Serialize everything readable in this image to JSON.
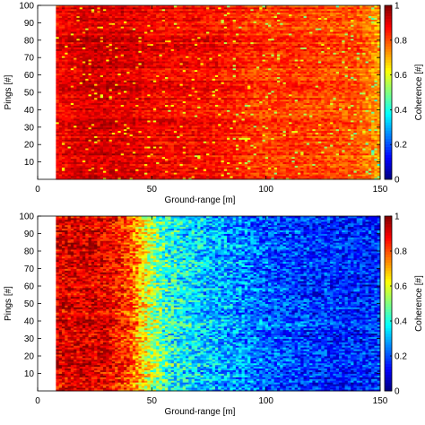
{
  "chart_data": [
    {
      "type": "heatmap",
      "xlabel": "Ground-range [m]",
      "ylabel": "Pings [#]",
      "colorbar_label": "Coherence [#]",
      "colormap": "jet",
      "xlim": [
        0,
        150
      ],
      "ylim": [
        0,
        100
      ],
      "clim": [
        0,
        1
      ],
      "x_ticks": [
        0,
        50,
        100,
        150
      ],
      "x_tick_labels": [
        "0",
        "50",
        "100",
        "150"
      ],
      "y_ticks": [
        10,
        20,
        30,
        40,
        50,
        60,
        70,
        80,
        90,
        100
      ],
      "y_tick_labels": [
        "10",
        "20",
        "30",
        "40",
        "50",
        "60",
        "70",
        "80",
        "90",
        "100"
      ],
      "colorbar_ticks": [
        0,
        0.2,
        0.4,
        0.6,
        0.8,
        1
      ],
      "colorbar_tick_labels": [
        "0",
        "0.2",
        "0.4",
        "0.6",
        "0.8",
        "1"
      ],
      "data_x_range": [
        8,
        150
      ],
      "coherence_profile": {
        "ground_range_m": [
          8,
          20,
          30,
          40,
          50,
          60,
          70,
          80,
          90,
          100,
          110,
          120,
          130,
          140,
          150
        ],
        "mean_coherence": [
          0.88,
          0.92,
          0.92,
          0.91,
          0.89,
          0.88,
          0.88,
          0.87,
          0.84,
          0.82,
          0.83,
          0.82,
          0.81,
          0.8,
          0.72
        ]
      }
    },
    {
      "type": "heatmap",
      "xlabel": "Ground-range [m]",
      "ylabel": "Pings [#]",
      "colorbar_label": "Coherence [#]",
      "colormap": "jet",
      "xlim": [
        0,
        150
      ],
      "ylim": [
        0,
        100
      ],
      "clim": [
        0,
        1
      ],
      "x_ticks": [
        0,
        50,
        100,
        150
      ],
      "x_tick_labels": [
        "0",
        "50",
        "100",
        "150"
      ],
      "y_ticks": [
        10,
        20,
        30,
        40,
        50,
        60,
        70,
        80,
        90,
        100
      ],
      "y_tick_labels": [
        "10",
        "20",
        "30",
        "40",
        "50",
        "60",
        "70",
        "80",
        "90",
        "100"
      ],
      "colorbar_ticks": [
        0,
        0.2,
        0.4,
        0.6,
        0.8,
        1
      ],
      "colorbar_tick_labels": [
        "0",
        "0.2",
        "0.4",
        "0.6",
        "0.8",
        "1"
      ],
      "data_x_range": [
        8,
        150
      ],
      "coherence_profile": {
        "ground_range_m": [
          8,
          20,
          30,
          40,
          45,
          50,
          55,
          60,
          70,
          80,
          90,
          100,
          110,
          120,
          130,
          140,
          150
        ],
        "mean_coherence": [
          0.9,
          0.92,
          0.9,
          0.82,
          0.68,
          0.55,
          0.45,
          0.4,
          0.35,
          0.3,
          0.27,
          0.22,
          0.2,
          0.18,
          0.17,
          0.16,
          0.18
        ]
      }
    }
  ]
}
